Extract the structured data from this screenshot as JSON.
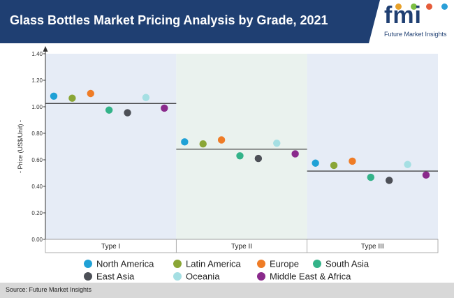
{
  "header": {
    "title": "Glass Bottles Market Pricing Analysis by Grade, 2021",
    "background": "#1f3f72"
  },
  "logo": {
    "letters": "fmi",
    "tagline": "Future Market Insights",
    "dot_colors": [
      "#e8a22a",
      "#7dbf42",
      "#e55c3a",
      "#2a9fd8"
    ]
  },
  "footer": {
    "source": "Source: Future Market Insights"
  },
  "chart_data": {
    "type": "scatter",
    "ylabel": "Price (US$/Unit)",
    "ylim": [
      0,
      1.4
    ],
    "yticks": [
      "0.00",
      "0.20",
      "0.40",
      "0.60",
      "0.80",
      "1.00",
      "1.20",
      "1.40"
    ],
    "categories": [
      "Type I",
      "Type II",
      "Type III"
    ],
    "band_colors": [
      "#e6ecf6",
      "#eaf2ee",
      "#e6ecf6"
    ],
    "averages": [
      1.025,
      0.68,
      0.515
    ],
    "legend_position": "bottom",
    "series": [
      {
        "name": "North America",
        "color": "#1fa1d6",
        "values": [
          1.08,
          0.735,
          0.575
        ]
      },
      {
        "name": "Latin America",
        "color": "#8aa636",
        "values": [
          1.065,
          0.72,
          0.558
        ]
      },
      {
        "name": "Europe",
        "color": "#ef7c26",
        "values": [
          1.1,
          0.75,
          0.59
        ]
      },
      {
        "name": "South Asia",
        "color": "#33b389",
        "values": [
          0.975,
          0.63,
          0.468
        ]
      },
      {
        "name": "East Asia",
        "color": "#4d5057",
        "values": [
          0.955,
          0.61,
          0.445
        ]
      },
      {
        "name": "Oceania",
        "color": "#a5dfe3",
        "values": [
          1.07,
          0.725,
          0.565
        ]
      },
      {
        "name": "Middle East & Africa",
        "color": "#8a2a8c",
        "values": [
          0.99,
          0.645,
          0.485
        ]
      }
    ]
  }
}
